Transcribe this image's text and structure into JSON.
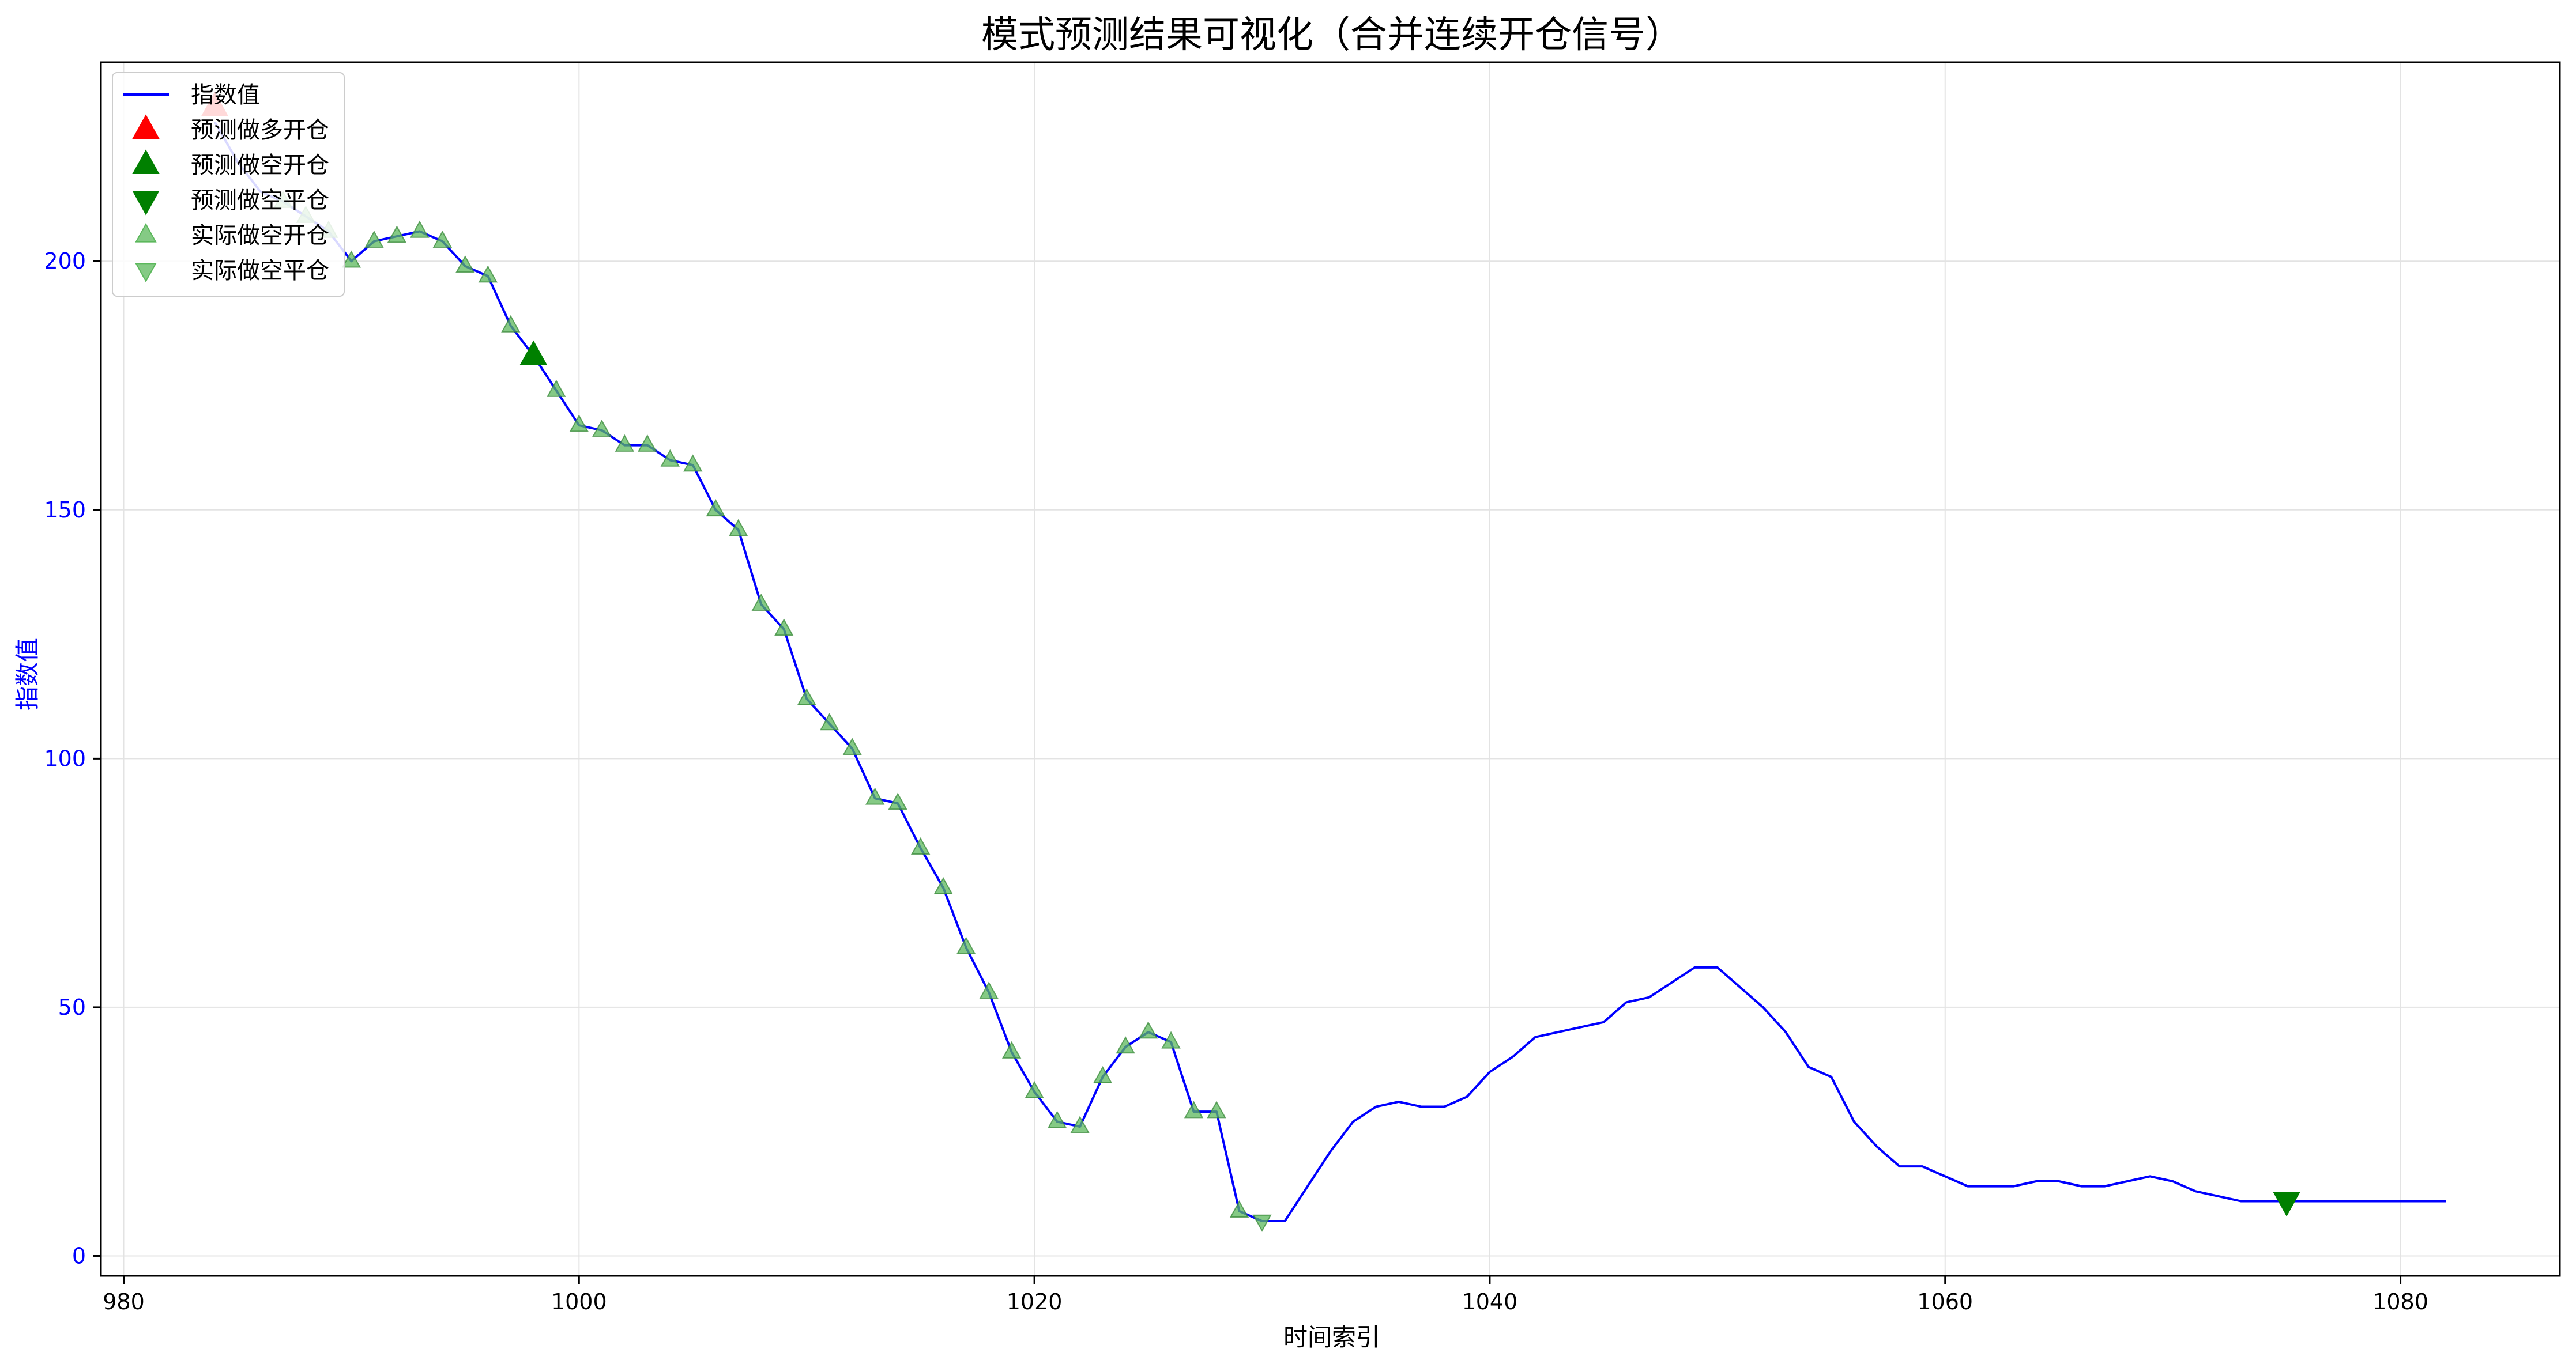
{
  "chart_data": {
    "type": "line",
    "title": "模式预测结果可视化（合并连续开仓信号）",
    "xlabel": "时间索引",
    "ylabel": "指数值",
    "xlim": [
      979,
      1087
    ],
    "ylim": [
      -4,
      240
    ],
    "x_ticks": [
      980,
      1000,
      1020,
      1040,
      1060,
      1080
    ],
    "y_ticks": [
      0,
      50,
      100,
      150,
      200
    ],
    "grid": true,
    "legend_position": "top-left",
    "colors": {
      "line": "#0000ff",
      "long_open": "#ff0000",
      "short": "#008000",
      "actual": "#5cb85c"
    },
    "series": [
      {
        "name": "指数值",
        "kind": "line",
        "x": [
          984,
          985,
          986,
          987,
          988,
          989,
          990,
          991,
          992,
          993,
          994,
          995,
          996,
          997,
          998,
          999,
          1000,
          1001,
          1002,
          1003,
          1004,
          1005,
          1006,
          1007,
          1008,
          1009,
          1010,
          1011,
          1012,
          1013,
          1014,
          1015,
          1016,
          1017,
          1018,
          1019,
          1020,
          1021,
          1022,
          1023,
          1024,
          1025,
          1026,
          1027,
          1028,
          1029,
          1030,
          1031,
          1032,
          1033,
          1034,
          1035,
          1036,
          1037,
          1038,
          1039,
          1040,
          1041,
          1042,
          1043,
          1044,
          1045,
          1046,
          1047,
          1048,
          1049,
          1050,
          1051,
          1052,
          1053,
          1054,
          1055,
          1056,
          1057,
          1058,
          1059,
          1060,
          1061,
          1062,
          1063,
          1064,
          1065,
          1066,
          1067,
          1068,
          1069,
          1070,
          1071,
          1072,
          1073,
          1074,
          1075,
          1076,
          1077,
          1078,
          1079,
          1080,
          1081,
          1082
        ],
        "y": [
          228,
          220,
          214,
          212,
          209,
          206,
          200,
          204,
          205,
          206,
          204,
          199,
          197,
          187,
          181,
          174,
          167,
          166,
          163,
          163,
          160,
          159,
          150,
          146,
          131,
          126,
          112,
          107,
          102,
          92,
          91,
          82,
          74,
          62,
          53,
          41,
          33,
          27,
          26,
          36,
          42,
          45,
          43,
          29,
          29,
          9,
          7,
          7,
          14,
          21,
          27,
          30,
          31,
          30,
          30,
          32,
          37,
          40,
          44,
          45,
          46,
          47,
          51,
          52,
          55,
          58,
          58,
          54,
          50,
          45,
          38,
          36,
          27,
          22,
          18,
          18,
          16,
          14,
          14,
          14,
          15,
          15,
          14,
          14,
          15,
          16,
          15,
          13,
          12,
          11,
          11,
          11,
          11,
          11,
          11,
          11,
          11,
          11,
          11
        ]
      },
      {
        "name": "预测做多开仓",
        "kind": "marker-up",
        "x": [
          984
        ],
        "y": [
          231
        ]
      },
      {
        "name": "预测做空开仓",
        "kind": "marker-up",
        "x": [
          998
        ],
        "y": [
          181
        ]
      },
      {
        "name": "预测做空平仓",
        "kind": "marker-down",
        "x": [
          1075
        ],
        "y": [
          11
        ]
      },
      {
        "name": "实际做空开仓",
        "kind": "marker-up-light",
        "x": [
          987,
          988,
          989,
          990,
          991,
          992,
          993,
          994,
          995,
          996,
          997,
          998,
          999,
          1000,
          1001,
          1002,
          1003,
          1004,
          1005,
          1006,
          1007,
          1008,
          1009,
          1010,
          1011,
          1012,
          1013,
          1014,
          1015,
          1016,
          1017,
          1018,
          1019,
          1020,
          1021,
          1022,
          1023,
          1024,
          1025,
          1026,
          1027,
          1028,
          1029
        ],
        "y": [
          212,
          209,
          206,
          200,
          204,
          205,
          206,
          204,
          199,
          197,
          187,
          181,
          174,
          167,
          166,
          163,
          163,
          160,
          159,
          150,
          146,
          131,
          126,
          112,
          107,
          102,
          92,
          91,
          82,
          74,
          62,
          53,
          41,
          33,
          27,
          26,
          36,
          42,
          45,
          43,
          29,
          29,
          9
        ]
      },
      {
        "name": "实际做空平仓",
        "kind": "marker-down-light",
        "x": [
          1030
        ],
        "y": [
          7
        ]
      }
    ]
  }
}
